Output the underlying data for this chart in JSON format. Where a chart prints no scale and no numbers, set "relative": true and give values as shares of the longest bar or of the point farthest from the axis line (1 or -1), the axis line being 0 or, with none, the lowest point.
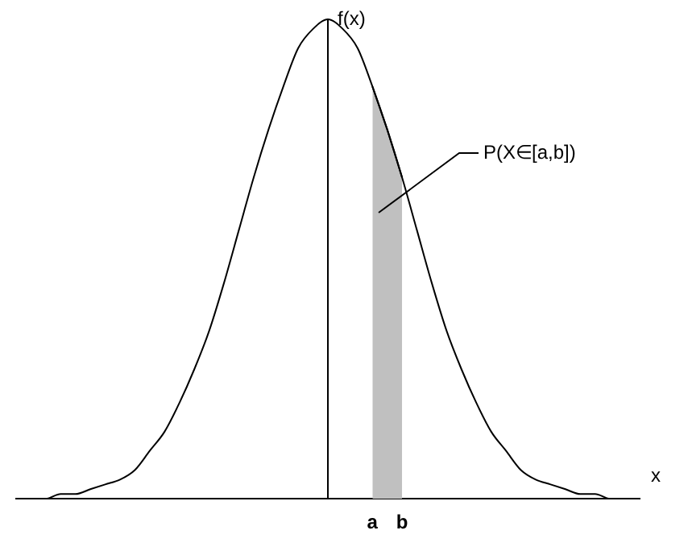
{
  "chart_data": {
    "type": "line",
    "relative": true,
    "xlabel": "x",
    "ylabel": "f(x)",
    "legend": false,
    "marker": "none",
    "annotations": [
      "P(X∈[a,b])"
    ],
    "categories": [
      null,
      null,
      null,
      null,
      null,
      null,
      null,
      null,
      null,
      null,
      null,
      null,
      null,
      null,
      null,
      null,
      null,
      null,
      null,
      null,
      null,
      null,
      null,
      null,
      "a",
      null,
      "b",
      null,
      null,
      null,
      null,
      null,
      null,
      null,
      null,
      null,
      null,
      null,
      null,
      null,
      null,
      null,
      null
    ],
    "series": [
      {
        "color": "#000000",
        "values": [
          0,
          0,
          0,
          0.01,
          0.01,
          0.02,
          0.03,
          0.04,
          0.06,
          0.1,
          0.14,
          0.2,
          0.27,
          0.35,
          0.45,
          0.56,
          0.67,
          0.77,
          0.86,
          0.94,
          0.98,
          1,
          0.98,
          0.94,
          0.86,
          0.77,
          0.67,
          0.56,
          0.45,
          0.35,
          0.27,
          0.2,
          0.14,
          0.1,
          0.06,
          0.04,
          0.03,
          0.02,
          0.01,
          0.01,
          0,
          0,
          0
        ]
      },
      {
        "type": "area",
        "color": "#c0c0c0",
        "values": [
          null,
          null,
          null,
          null,
          null,
          null,
          null,
          null,
          null,
          null,
          null,
          null,
          null,
          null,
          null,
          null,
          null,
          null,
          null,
          null,
          null,
          null,
          null,
          null,
          0.86,
          0.77,
          0.67,
          null,
          null,
          null,
          null,
          null,
          null,
          null,
          null,
          null,
          null,
          null,
          null,
          null,
          null,
          null,
          null
        ]
      }
    ]
  }
}
